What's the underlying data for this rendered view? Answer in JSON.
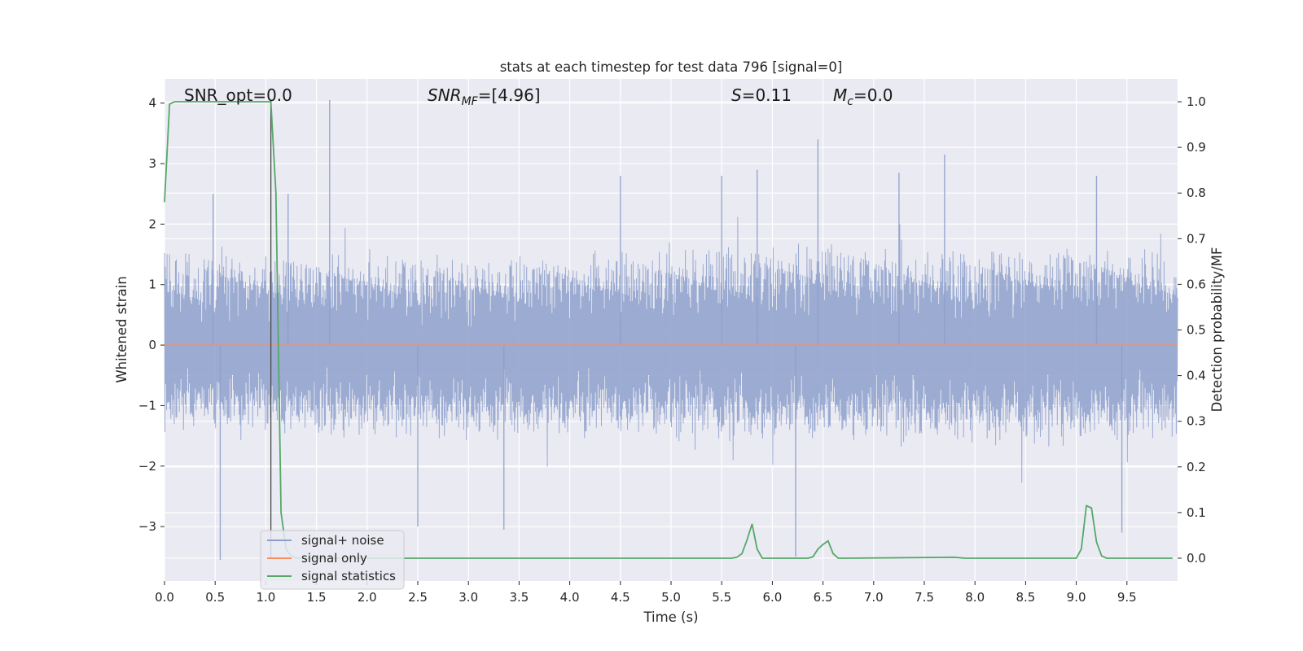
{
  "chart_data": {
    "type": "line",
    "title": "stats at each timestep for test data 796 [signal=0]",
    "xlabel": "Time (s)",
    "ylabel": "Whitened strain",
    "y2label": "Detection probability/MF",
    "xlim": [
      0.0,
      10.0
    ],
    "ylim": [
      -3.9,
      4.4
    ],
    "y2lim": [
      -0.05,
      1.05
    ],
    "xticks": [
      "0.0",
      "0.5",
      "1.0",
      "1.5",
      "2.0",
      "2.5",
      "3.0",
      "3.5",
      "4.0",
      "4.5",
      "5.0",
      "5.5",
      "6.0",
      "6.5",
      "7.0",
      "7.5",
      "8.0",
      "8.5",
      "9.0",
      "9.5"
    ],
    "yticks": [
      "−3",
      "−2",
      "−1",
      "0",
      "1",
      "2",
      "3",
      "4"
    ],
    "y2ticks": [
      "0.0",
      "0.1",
      "0.2",
      "0.3",
      "0.4",
      "0.5",
      "0.6",
      "0.7",
      "0.8",
      "0.9",
      "1.0"
    ],
    "grid": true,
    "legend_position": "lower-left",
    "marker_line_x": 1.05,
    "annotations": {
      "snr_opt": "SNR_opt=0.0",
      "snr_mf_main": "SNR",
      "snr_mf_sub": "MF",
      "snr_mf_value": "=[4.96]",
      "s_main": "S",
      "s_value": "=0.11",
      "mc_main": "M",
      "mc_sub": "c",
      "mc_value": "=0.0"
    },
    "series": [
      {
        "name": "signal+ noise",
        "axis": "left",
        "color": "#8da0cb",
        "style": "dense-noise",
        "envelope": [
          [
            0.0,
            -1.5,
            1.6
          ],
          [
            1.0,
            -1.5,
            1.5
          ],
          [
            2.0,
            -1.6,
            1.6
          ],
          [
            3.0,
            -1.6,
            1.5
          ],
          [
            4.0,
            -1.6,
            1.6
          ],
          [
            5.0,
            -1.6,
            1.6
          ],
          [
            6.0,
            -1.7,
            1.7
          ],
          [
            7.0,
            -1.6,
            1.7
          ],
          [
            8.0,
            -1.7,
            1.6
          ],
          [
            9.0,
            -1.7,
            1.7
          ],
          [
            10.0,
            -1.6,
            1.6
          ]
        ],
        "spikes": [
          [
            0.55,
            -3.55
          ],
          [
            1.63,
            4.05
          ],
          [
            2.5,
            -3.0
          ],
          [
            3.35,
            -3.05
          ],
          [
            6.23,
            -3.5
          ],
          [
            6.45,
            3.4
          ],
          [
            7.7,
            3.15
          ],
          [
            9.45,
            -3.1
          ],
          [
            0.48,
            2.5
          ],
          [
            1.22,
            2.5
          ],
          [
            4.5,
            2.8
          ],
          [
            5.5,
            2.8
          ],
          [
            5.85,
            2.9
          ],
          [
            7.25,
            2.85
          ],
          [
            9.2,
            2.8
          ]
        ]
      },
      {
        "name": "signal only",
        "axis": "left",
        "color": "#fc8d62",
        "x": [
          0.0,
          10.0
        ],
        "values": [
          0.0,
          0.0
        ]
      },
      {
        "name": "signal statistics",
        "axis": "right",
        "color": "#55a868",
        "x": [
          0.0,
          0.05,
          0.1,
          0.15,
          0.2,
          1.0,
          1.05,
          1.1,
          1.15,
          1.2,
          1.25,
          1.3,
          5.6,
          5.65,
          5.7,
          5.75,
          5.8,
          5.85,
          5.9,
          5.95,
          6.0,
          6.35,
          6.4,
          6.45,
          6.5,
          6.55,
          6.6,
          6.65,
          6.7,
          7.8,
          7.9,
          8.0,
          9.0,
          9.05,
          9.1,
          9.15,
          9.2,
          9.25,
          9.3,
          9.95
        ],
        "values": [
          0.78,
          0.995,
          1.0,
          1.0,
          1.0,
          1.0,
          1.0,
          0.8,
          0.1,
          0.02,
          0.005,
          0.0,
          0.0,
          0.002,
          0.01,
          0.04,
          0.075,
          0.02,
          0.0,
          0.0,
          0.0,
          0.0,
          0.003,
          0.02,
          0.03,
          0.038,
          0.01,
          0.0,
          0.0,
          0.002,
          0.0,
          0.0,
          0.0,
          0.02,
          0.115,
          0.11,
          0.035,
          0.005,
          0.0,
          0.0
        ]
      }
    ]
  }
}
